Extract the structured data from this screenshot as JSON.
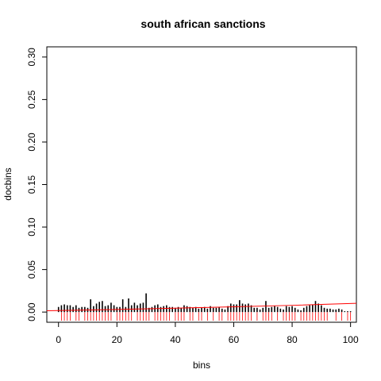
{
  "chart_data": {
    "type": "bar",
    "title": "south african sanctions",
    "xlabel": "bins",
    "ylabel": "docbins",
    "xlim": [
      -4,
      102
    ],
    "ylim": [
      -0.012,
      0.312
    ],
    "x_ticks": [
      0,
      20,
      40,
      60,
      80,
      100
    ],
    "y_ticks": [
      0.0,
      0.05,
      0.1,
      0.15,
      0.2,
      0.25,
      0.3
    ],
    "x_tick_labels": [
      "0",
      "20",
      "40",
      "60",
      "80",
      "100"
    ],
    "y_tick_labels": [
      "0.00",
      "0.05",
      "0.10",
      "0.15",
      "0.20",
      "0.25",
      "0.30"
    ],
    "grid": false,
    "series": [
      {
        "type": "histogram-bars",
        "color": "#000000",
        "x": [
          0,
          1,
          2,
          3,
          4,
          5,
          6,
          7,
          8,
          9,
          10,
          11,
          12,
          13,
          14,
          15,
          16,
          17,
          18,
          19,
          20,
          21,
          22,
          23,
          24,
          25,
          26,
          27,
          28,
          29,
          30,
          31,
          32,
          33,
          34,
          35,
          36,
          37,
          38,
          39,
          40,
          41,
          42,
          43,
          44,
          45,
          46,
          47,
          48,
          49,
          50,
          51,
          52,
          53,
          54,
          55,
          56,
          57,
          58,
          59,
          60,
          61,
          62,
          63,
          64,
          65,
          66,
          67,
          68,
          69,
          70,
          71,
          72,
          73,
          74,
          75,
          76,
          77,
          78,
          79,
          80,
          81,
          82,
          83,
          84,
          85,
          86,
          87,
          88,
          89,
          90,
          91,
          92,
          93,
          94,
          95,
          96,
          97,
          98,
          99,
          100
        ],
        "values": [
          0.006,
          0.008,
          0.009,
          0.008,
          0.008,
          0.006,
          0.008,
          0.005,
          0.006,
          0.006,
          0.005,
          0.015,
          0.007,
          0.01,
          0.012,
          0.013,
          0.007,
          0.008,
          0.011,
          0.008,
          0.006,
          0.006,
          0.015,
          0.006,
          0.016,
          0.008,
          0.011,
          0.008,
          0.01,
          0.011,
          0.022,
          0.005,
          0.006,
          0.008,
          0.009,
          0.006,
          0.007,
          0.008,
          0.006,
          0.006,
          0.005,
          0.006,
          0.005,
          0.008,
          0.007,
          0.006,
          0.005,
          0.006,
          0.004,
          0.005,
          0.006,
          0.004,
          0.007,
          0.005,
          0.005,
          0.006,
          0.004,
          0.003,
          0.007,
          0.01,
          0.009,
          0.009,
          0.014,
          0.01,
          0.009,
          0.01,
          0.008,
          0.005,
          0.005,
          0.003,
          0.005,
          0.013,
          0.005,
          0.006,
          0.007,
          0.006,
          0.004,
          0.003,
          0.007,
          0.006,
          0.007,
          0.005,
          0.003,
          0.002,
          0.005,
          0.007,
          0.008,
          0.009,
          0.013,
          0.01,
          0.008,
          0.005,
          0.004,
          0.004,
          0.003,
          0.003,
          0.004,
          0.003,
          0.001,
          0.001,
          0.001
        ]
      },
      {
        "type": "rug",
        "color": "#ff0000",
        "values": [
          1,
          2,
          3,
          4,
          6,
          7,
          9,
          10,
          11,
          12,
          13,
          14,
          15,
          16,
          17,
          18,
          20,
          21,
          22,
          23,
          24,
          25,
          27,
          28,
          29,
          30,
          31,
          33,
          34,
          35,
          36,
          37,
          38,
          40,
          41,
          42,
          43,
          45,
          46,
          48,
          49,
          51,
          53,
          55,
          56,
          58,
          59,
          60,
          61,
          62,
          63,
          64,
          65,
          66,
          68,
          70,
          71,
          72,
          73,
          75,
          77,
          78,
          79,
          80,
          81,
          83,
          84,
          85,
          86,
          87,
          88,
          89,
          90,
          91,
          92,
          95,
          97,
          99,
          100
        ]
      },
      {
        "type": "line",
        "color": "#ff0000",
        "x": [
          -4,
          20,
          40,
          60,
          80,
          102
        ],
        "values": [
          0.0015,
          0.0031,
          0.0046,
          0.0062,
          0.0079,
          0.0103
        ]
      }
    ]
  }
}
